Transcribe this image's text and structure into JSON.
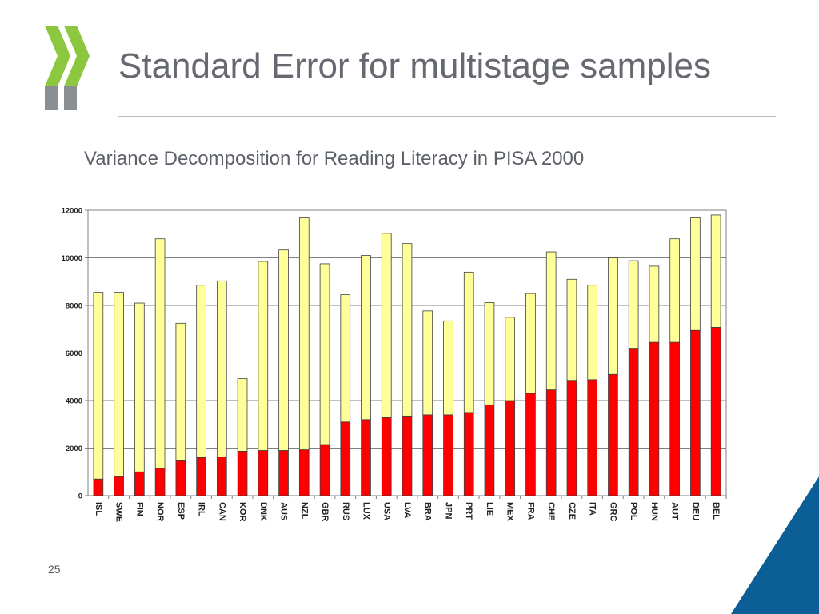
{
  "slide": {
    "title": "Standard Error for multistage samples",
    "subtitle": "Variance Decomposition for Reading Literacy in PISA 2000",
    "page_number": "25",
    "accent_green": "#8dc63f",
    "accent_grey": "#8a8f94",
    "corner_blue": "#0b5e96"
  },
  "chart_data": {
    "type": "bar",
    "stacked": true,
    "title": "",
    "xlabel": "",
    "ylabel": "",
    "ylim": [
      0,
      12000
    ],
    "yticks": [
      0,
      2000,
      4000,
      6000,
      8000,
      10000,
      12000
    ],
    "grid": true,
    "legend": "none",
    "categories": [
      "ISL",
      "SWE",
      "FIN",
      "NOR",
      "ESP",
      "IRL",
      "CAN",
      "KOR",
      "DNK",
      "AUS",
      "NZL",
      "GBR",
      "RUS",
      "LUX",
      "USA",
      "LVA",
      "BRA",
      "JPN",
      "PRT",
      "LIE",
      "MEX",
      "FRA",
      "CHE",
      "CZE",
      "ITA",
      "GRC",
      "POL",
      "HUN",
      "AUT",
      "DEU",
      "BEL"
    ],
    "series": [
      {
        "color": "#ff0000",
        "values": [
          700,
          800,
          1000,
          1150,
          1500,
          1600,
          1630,
          1870,
          1900,
          1900,
          1930,
          2150,
          3100,
          3200,
          3280,
          3350,
          3400,
          3400,
          3500,
          3820,
          4000,
          4300,
          4450,
          4850,
          4880,
          5100,
          6200,
          6450,
          6450,
          6950,
          7080
        ]
      },
      {
        "color": "#ffff99",
        "values": [
          7850,
          7750,
          7100,
          9650,
          5750,
          7250,
          7400,
          3050,
          7950,
          8430,
          9750,
          7600,
          5350,
          6900,
          7750,
          7250,
          4370,
          3950,
          5900,
          4300,
          3500,
          4200,
          5800,
          4250,
          3970,
          4900,
          3680,
          3200,
          4350,
          4730,
          4720
        ]
      }
    ]
  }
}
